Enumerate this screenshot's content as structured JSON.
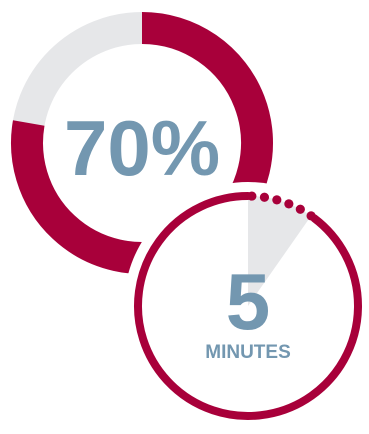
{
  "progress": {
    "value_text": "70%",
    "fraction": 0.7,
    "colors": {
      "track": "#e6e7e9",
      "fill": "#a8003a",
      "text": "#7397b0"
    }
  },
  "timer": {
    "value_text": "5",
    "unit_text": "MINUTES",
    "colors": {
      "ring": "#a8003a",
      "wedge": "#e6e7e9",
      "text": "#7397b0"
    }
  }
}
